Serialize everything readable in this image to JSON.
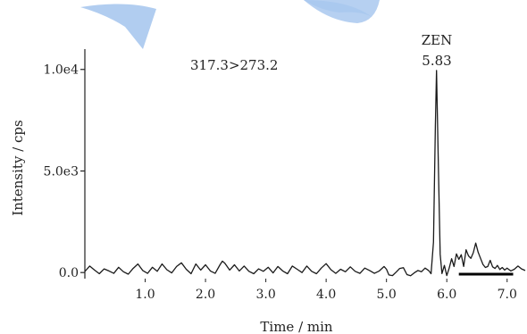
{
  "chart_data": {
    "type": "line",
    "title": "",
    "xlabel": "Time / min",
    "ylabel": "Intensity / cps",
    "xlim": [
      0.0,
      7.3
    ],
    "ylim": [
      -300,
      11000
    ],
    "x_ticks": [
      1.0,
      2.0,
      3.0,
      4.0,
      5.0,
      6.0,
      7.0
    ],
    "x_tick_labels": [
      "1.0",
      "2.0",
      "3.0",
      "4.0",
      "5.0",
      "6.0",
      "7.0"
    ],
    "y_ticks": [
      0,
      5000,
      10000
    ],
    "y_tick_labels": [
      "0.0",
      "5.0e3",
      "1.0e4"
    ],
    "grid": false,
    "transition_label": "317.3>273.2",
    "peak": {
      "name": "ZEN",
      "retention_time": "5.83",
      "x": 5.83,
      "y": 9950
    },
    "series": [
      {
        "color": "#1a1a1a",
        "points": [
          [
            0.0,
            50
          ],
          [
            0.08,
            320
          ],
          [
            0.16,
            120
          ],
          [
            0.24,
            -60
          ],
          [
            0.32,
            180
          ],
          [
            0.4,
            80
          ],
          [
            0.48,
            -40
          ],
          [
            0.56,
            260
          ],
          [
            0.64,
            40
          ],
          [
            0.72,
            -80
          ],
          [
            0.8,
            200
          ],
          [
            0.88,
            420
          ],
          [
            0.96,
            100
          ],
          [
            1.04,
            -40
          ],
          [
            1.12,
            260
          ],
          [
            1.2,
            60
          ],
          [
            1.28,
            420
          ],
          [
            1.36,
            140
          ],
          [
            1.44,
            -20
          ],
          [
            1.52,
            300
          ],
          [
            1.6,
            480
          ],
          [
            1.68,
            160
          ],
          [
            1.76,
            -60
          ],
          [
            1.84,
            420
          ],
          [
            1.92,
            120
          ],
          [
            2.0,
            380
          ],
          [
            2.08,
            80
          ],
          [
            2.16,
            -40
          ],
          [
            2.24,
            380
          ],
          [
            2.28,
            560
          ],
          [
            2.32,
            460
          ],
          [
            2.4,
            120
          ],
          [
            2.48,
            380
          ],
          [
            2.56,
            80
          ],
          [
            2.64,
            320
          ],
          [
            2.72,
            60
          ],
          [
            2.8,
            -60
          ],
          [
            2.88,
            180
          ],
          [
            2.96,
            60
          ],
          [
            3.04,
            260
          ],
          [
            3.12,
            -20
          ],
          [
            3.2,
            300
          ],
          [
            3.28,
            80
          ],
          [
            3.36,
            -60
          ],
          [
            3.44,
            320
          ],
          [
            3.52,
            160
          ],
          [
            3.6,
            0
          ],
          [
            3.68,
            320
          ],
          [
            3.76,
            60
          ],
          [
            3.84,
            -60
          ],
          [
            3.92,
            220
          ],
          [
            4.0,
            440
          ],
          [
            4.08,
            140
          ],
          [
            4.16,
            -40
          ],
          [
            4.24,
            160
          ],
          [
            4.32,
            40
          ],
          [
            4.4,
            280
          ],
          [
            4.48,
            60
          ],
          [
            4.56,
            -40
          ],
          [
            4.64,
            220
          ],
          [
            4.72,
            100
          ],
          [
            4.8,
            -40
          ],
          [
            4.88,
            80
          ],
          [
            4.96,
            300
          ],
          [
            5.0,
            160
          ],
          [
            5.04,
            -120
          ],
          [
            5.1,
            -150
          ],
          [
            5.16,
            20
          ],
          [
            5.22,
            200
          ],
          [
            5.28,
            240
          ],
          [
            5.34,
            -100
          ],
          [
            5.4,
            -160
          ],
          [
            5.46,
            -20
          ],
          [
            5.52,
            100
          ],
          [
            5.58,
            40
          ],
          [
            5.64,
            220
          ],
          [
            5.7,
            100
          ],
          [
            5.74,
            -60
          ],
          [
            5.78,
            1500
          ],
          [
            5.81,
            7200
          ],
          [
            5.83,
            9950
          ],
          [
            5.86,
            5200
          ],
          [
            5.89,
            900
          ],
          [
            5.92,
            -50
          ],
          [
            5.96,
            350
          ],
          [
            6.0,
            -150
          ],
          [
            6.04,
            220
          ],
          [
            6.08,
            680
          ],
          [
            6.12,
            300
          ],
          [
            6.16,
            920
          ],
          [
            6.2,
            650
          ],
          [
            6.24,
            880
          ],
          [
            6.28,
            300
          ],
          [
            6.32,
            1120
          ],
          [
            6.36,
            820
          ],
          [
            6.4,
            700
          ],
          [
            6.44,
            980
          ],
          [
            6.48,
            1450
          ],
          [
            6.52,
            1000
          ],
          [
            6.56,
            700
          ],
          [
            6.6,
            400
          ],
          [
            6.64,
            250
          ],
          [
            6.68,
            300
          ],
          [
            6.72,
            600
          ],
          [
            6.76,
            280
          ],
          [
            6.8,
            200
          ],
          [
            6.84,
            350
          ],
          [
            6.88,
            150
          ],
          [
            6.92,
            250
          ],
          [
            6.96,
            120
          ],
          [
            7.0,
            220
          ],
          [
            7.06,
            80
          ],
          [
            7.12,
            160
          ],
          [
            7.18,
            320
          ],
          [
            7.24,
            180
          ],
          [
            7.3,
            100
          ]
        ]
      },
      {
        "color": "#000000",
        "points": [
          [
            6.2,
            -80
          ],
          [
            6.8,
            -80
          ],
          [
            7.1,
            -80
          ]
        ]
      }
    ]
  },
  "watermark": {
    "color": "#a9c8ee"
  }
}
